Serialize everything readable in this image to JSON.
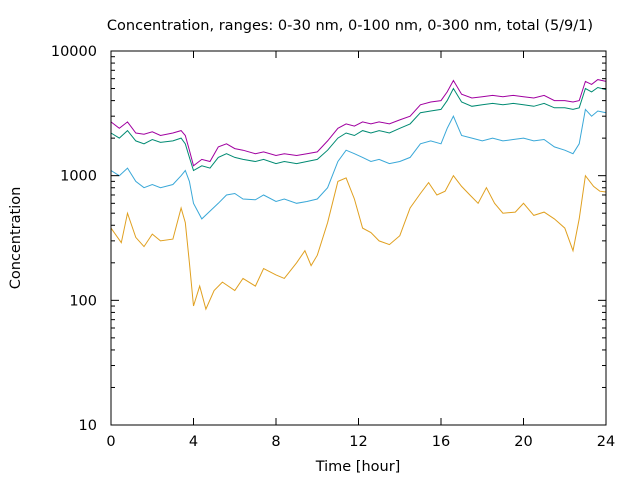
{
  "chart_data": {
    "type": "line",
    "title": "Concentration, ranges: 0-30 nm, 0-100 nm, 0-300 nm, total (5/9/1)",
    "xlabel": "Time [hour]",
    "ylabel": "Concentration",
    "xlim": [
      0,
      24
    ],
    "ylim": [
      10,
      10000
    ],
    "yscale": "log",
    "grid": false,
    "legend": "none",
    "x_ticks": [
      0,
      4,
      8,
      12,
      16,
      20,
      24
    ],
    "x_tick_labels": [
      "0",
      "4",
      "8",
      "12",
      "16",
      "20",
      "24"
    ],
    "y_ticks": [
      10,
      100,
      1000,
      10000
    ],
    "y_tick_labels": [
      "10",
      "100",
      "1000",
      "10000"
    ],
    "series": [
      {
        "color": "#e0a020",
        "x": [
          0,
          0.5,
          0.8,
          1.2,
          1.6,
          2.0,
          2.4,
          3.0,
          3.4,
          3.6,
          3.8,
          4.0,
          4.3,
          4.6,
          5.0,
          5.4,
          6.0,
          6.4,
          7.0,
          7.4,
          8.0,
          8.4,
          9.0,
          9.4,
          9.7,
          10.0,
          10.5,
          11.0,
          11.4,
          11.8,
          12.2,
          12.6,
          13.0,
          13.5,
          14.0,
          14.5,
          15.0,
          15.4,
          15.8,
          16.2,
          16.6,
          17.0,
          17.4,
          17.8,
          18.2,
          18.6,
          19.0,
          19.6,
          20.0,
          20.5,
          21.0,
          21.5,
          22.0,
          22.4,
          22.7,
          23.0,
          23.4,
          23.7,
          24.0
        ],
        "y": [
          380,
          290,
          500,
          320,
          270,
          340,
          300,
          310,
          550,
          420,
          200,
          90,
          130,
          85,
          120,
          140,
          120,
          150,
          130,
          180,
          160,
          150,
          200,
          250,
          190,
          230,
          420,
          900,
          960,
          650,
          380,
          350,
          300,
          280,
          330,
          550,
          720,
          880,
          700,
          750,
          1000,
          820,
          700,
          600,
          800,
          600,
          500,
          510,
          600,
          480,
          510,
          450,
          380,
          250,
          450,
          1000,
          820,
          750,
          740
        ]
      },
      {
        "color": "#3aa8d8",
        "x": [
          0,
          0.4,
          0.8,
          1.2,
          1.6,
          2.0,
          2.4,
          3.0,
          3.4,
          3.6,
          3.8,
          4.0,
          4.4,
          4.8,
          5.2,
          5.6,
          6.0,
          6.4,
          7.0,
          7.4,
          8.0,
          8.4,
          9.0,
          9.5,
          10.0,
          10.5,
          11.0,
          11.4,
          11.8,
          12.2,
          12.6,
          13.0,
          13.5,
          14.0,
          14.5,
          15.0,
          15.5,
          16.0,
          16.3,
          16.6,
          17.0,
          17.5,
          18.0,
          18.5,
          19.0,
          19.5,
          20.0,
          20.5,
          21.0,
          21.5,
          22.0,
          22.4,
          22.7,
          23.0,
          23.3,
          23.6,
          24.0
        ],
        "y": [
          1100,
          1000,
          1150,
          900,
          800,
          850,
          800,
          850,
          1000,
          1100,
          900,
          600,
          450,
          520,
          600,
          700,
          720,
          650,
          640,
          700,
          620,
          650,
          600,
          620,
          650,
          800,
          1300,
          1600,
          1500,
          1400,
          1300,
          1350,
          1250,
          1300,
          1400,
          1800,
          1900,
          1800,
          2400,
          3000,
          2100,
          2000,
          1900,
          2000,
          1900,
          1950,
          2000,
          1900,
          1950,
          1700,
          1600,
          1500,
          1800,
          3400,
          3000,
          3300,
          3200
        ]
      },
      {
        "color": "#008a72",
        "x": [
          0,
          0.4,
          0.8,
          1.2,
          1.6,
          2.0,
          2.4,
          3.0,
          3.4,
          3.6,
          3.8,
          4.0,
          4.4,
          4.8,
          5.2,
          5.6,
          6.0,
          6.4,
          7.0,
          7.4,
          8.0,
          8.4,
          9.0,
          9.5,
          10.0,
          10.5,
          11.0,
          11.4,
          11.8,
          12.2,
          12.6,
          13.0,
          13.5,
          14.0,
          14.5,
          15.0,
          15.5,
          16.0,
          16.3,
          16.6,
          17.0,
          17.5,
          18.0,
          18.5,
          19.0,
          19.5,
          20.0,
          20.5,
          21.0,
          21.5,
          22.0,
          22.4,
          22.7,
          23.0,
          23.3,
          23.6,
          24.0
        ],
        "y": [
          2200,
          2000,
          2300,
          1900,
          1800,
          1950,
          1850,
          1900,
          2000,
          1800,
          1400,
          1100,
          1200,
          1150,
          1400,
          1500,
          1400,
          1350,
          1300,
          1350,
          1250,
          1300,
          1250,
          1300,
          1350,
          1600,
          2000,
          2200,
          2100,
          2300,
          2200,
          2300,
          2200,
          2400,
          2600,
          3200,
          3300,
          3400,
          4000,
          5000,
          3900,
          3600,
          3700,
          3800,
          3700,
          3800,
          3700,
          3600,
          3800,
          3500,
          3500,
          3400,
          3500,
          5000,
          4700,
          5100,
          4900
        ]
      },
      {
        "color": "#a000a0",
        "x": [
          0,
          0.4,
          0.8,
          1.2,
          1.6,
          2.0,
          2.4,
          3.0,
          3.4,
          3.6,
          3.8,
          4.0,
          4.4,
          4.8,
          5.2,
          5.6,
          6.0,
          6.4,
          7.0,
          7.4,
          8.0,
          8.4,
          9.0,
          9.5,
          10.0,
          10.5,
          11.0,
          11.4,
          11.8,
          12.2,
          12.6,
          13.0,
          13.5,
          14.0,
          14.5,
          15.0,
          15.5,
          16.0,
          16.3,
          16.6,
          17.0,
          17.5,
          18.0,
          18.5,
          19.0,
          19.5,
          20.0,
          20.5,
          21.0,
          21.5,
          22.0,
          22.4,
          22.7,
          23.0,
          23.3,
          23.6,
          24.0
        ],
        "y": [
          2700,
          2400,
          2700,
          2200,
          2150,
          2250,
          2100,
          2200,
          2300,
          2100,
          1600,
          1200,
          1350,
          1300,
          1700,
          1800,
          1650,
          1600,
          1500,
          1550,
          1450,
          1500,
          1450,
          1500,
          1550,
          1900,
          2400,
          2600,
          2500,
          2700,
          2600,
          2700,
          2600,
          2800,
          3000,
          3700,
          3900,
          4000,
          4700,
          5800,
          4500,
          4200,
          4300,
          4400,
          4300,
          4400,
          4300,
          4200,
          4400,
          4000,
          4000,
          3900,
          4000,
          5700,
          5400,
          5900,
          5700
        ]
      }
    ]
  }
}
